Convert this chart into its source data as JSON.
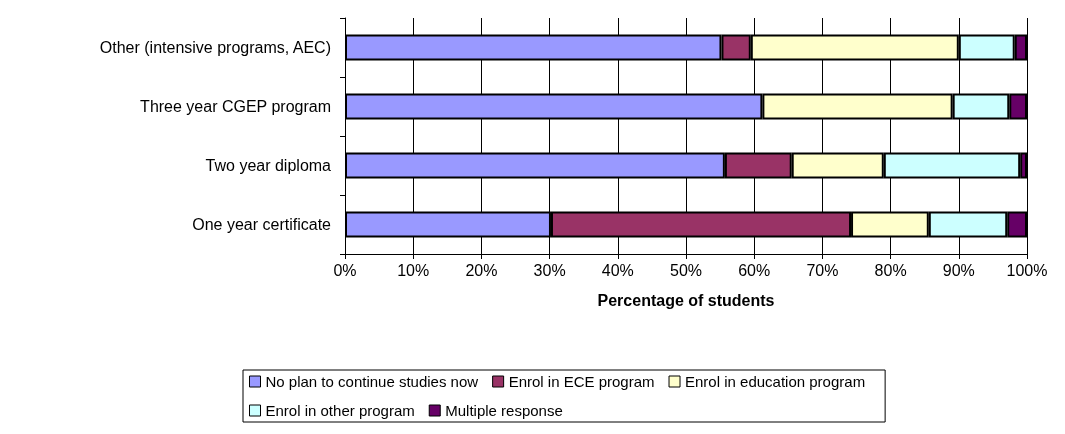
{
  "chart_data": {
    "type": "bar",
    "orientation": "horizontal",
    "stacked": true,
    "xlabel": "Percentage of students",
    "categories": [
      "Other (intensive programs, AEC)",
      "Three year CGEP program",
      "Two year diploma",
      "One year certificate"
    ],
    "series": [
      {
        "name": "No plan to continue studies now",
        "color": "#9999ff",
        "values": [
          55.2,
          61.2,
          55.7,
          30.2
        ]
      },
      {
        "name": "Enrol in ECE program",
        "color": "#993366",
        "values": [
          4.3,
          null,
          9.8,
          44.0
        ]
      },
      {
        "name": "Enrol in education program",
        "color": "#ffffcc",
        "values": [
          30.5,
          27.9,
          13.5,
          11.4
        ]
      },
      {
        "name": "Enrol in other program",
        "color": "#ccffff",
        "values": [
          8.2,
          8.3,
          20.0,
          11.5
        ]
      },
      {
        "name": "Multiple response",
        "color": "#660066",
        "values": [
          1.8,
          2.6,
          1.0,
          2.9
        ]
      }
    ],
    "xlim": [
      0,
      100
    ],
    "xticks": [
      {
        "value": 0,
        "label": "0%"
      },
      {
        "value": 10,
        "label": "10%"
      },
      {
        "value": 20,
        "label": "20%"
      },
      {
        "value": 30,
        "label": "30%"
      },
      {
        "value": 40,
        "label": "40%"
      },
      {
        "value": 50,
        "label": "50%"
      },
      {
        "value": 60,
        "label": "60%"
      },
      {
        "value": 70,
        "label": "70%"
      },
      {
        "value": 80,
        "label": "80%"
      },
      {
        "value": 90,
        "label": "90%"
      },
      {
        "value": 100,
        "label": "100%"
      }
    ],
    "grid": "x",
    "legend": "bottom"
  }
}
